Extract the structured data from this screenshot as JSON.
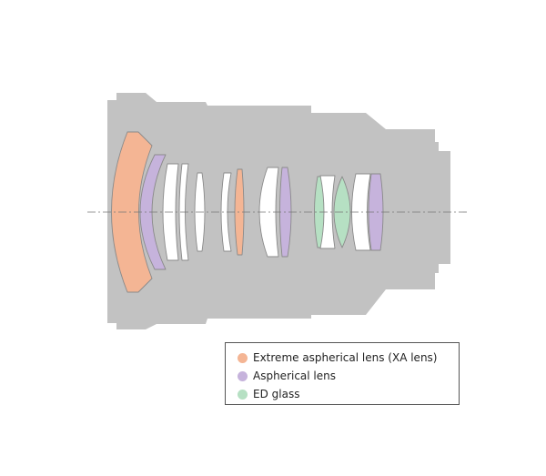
{
  "colors": {
    "barrel": "#c2c2c2",
    "xa": "#f4b594",
    "aspherical": "#c6b3dc",
    "ed": "#b6e0c3",
    "standard": "#ffffff",
    "outline": "#8a8a8a",
    "axis": "#777777"
  },
  "legend": {
    "items": [
      {
        "label": "Extreme aspherical lens (XA lens)",
        "type": "xa",
        "icon": "circle-swatch-icon"
      },
      {
        "label": "Aspherical lens",
        "type": "aspherical",
        "icon": "circle-swatch-icon"
      },
      {
        "label": "ED glass",
        "type": "ed",
        "icon": "circle-swatch-icon"
      }
    ]
  },
  "elements": [
    {
      "type": "xa"
    },
    {
      "type": "aspherical"
    },
    {
      "type": "standard"
    },
    {
      "type": "standard"
    },
    {
      "type": "standard"
    },
    {
      "type": "standard"
    },
    {
      "type": "xa"
    },
    {
      "type": "standard"
    },
    {
      "type": "aspherical"
    },
    {
      "type": "ed"
    },
    {
      "type": "standard"
    },
    {
      "type": "ed"
    },
    {
      "type": "standard"
    },
    {
      "type": "aspherical"
    }
  ]
}
